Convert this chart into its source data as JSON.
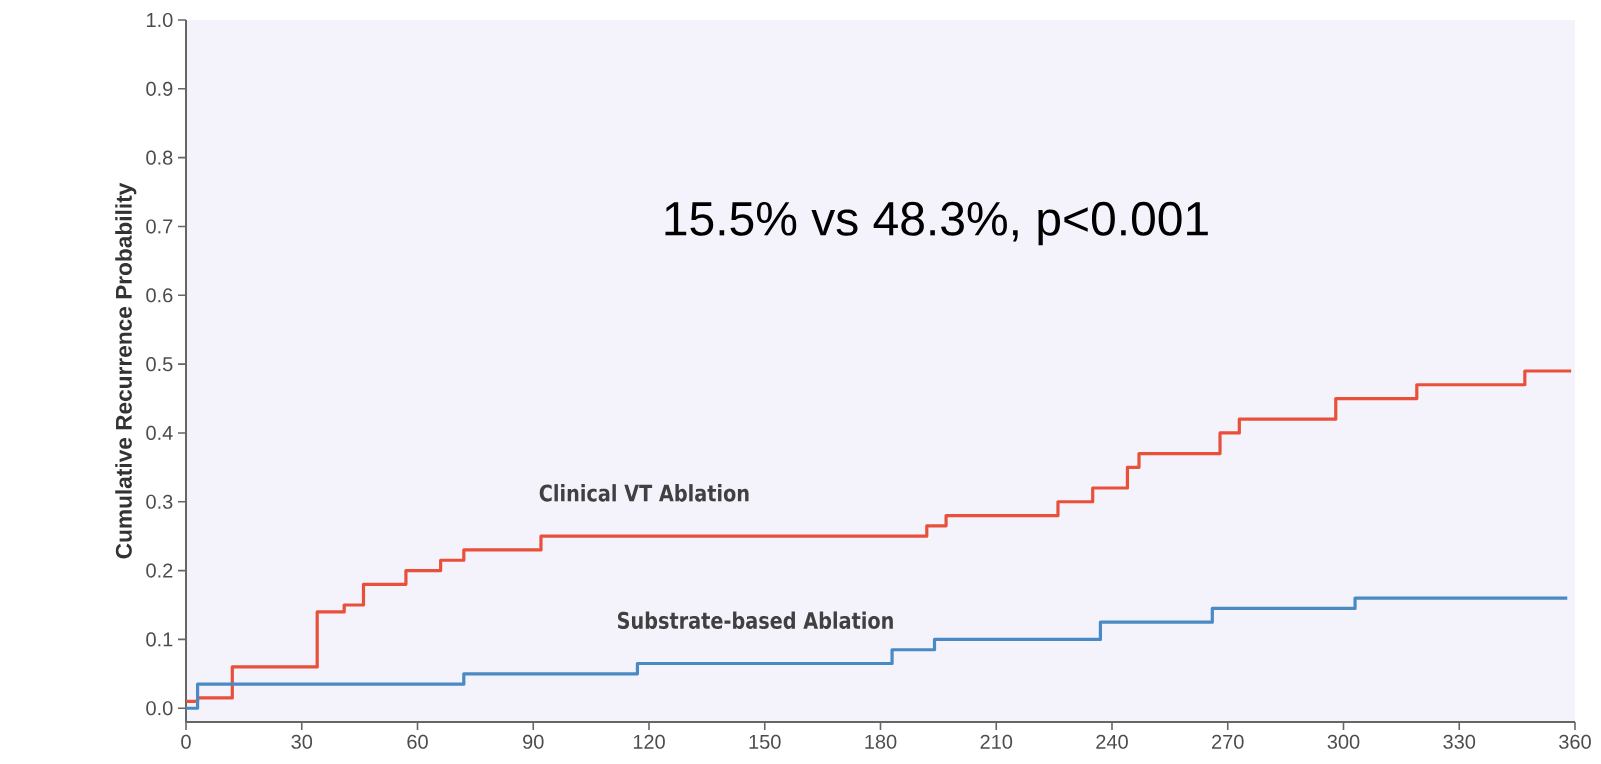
{
  "chart_data": {
    "type": "step",
    "ylabel": "Cumulative Recurrence Probability",
    "xlim": [
      0,
      360
    ],
    "ylim": [
      -0.02,
      1.0
    ],
    "xticks": [
      0,
      30,
      60,
      90,
      120,
      150,
      180,
      210,
      240,
      270,
      300,
      330,
      360
    ],
    "yticks": [
      {
        "value": 0,
        "label": "0.0"
      },
      {
        "value": 0.1,
        "label": "0.1"
      },
      {
        "value": 0.2,
        "label": "0.2"
      },
      {
        "value": 0.3,
        "label": "0.3"
      },
      {
        "value": 0.4,
        "label": "0.4"
      },
      {
        "value": 0.5,
        "label": "0.5"
      },
      {
        "value": 0.6,
        "label": "0.6"
      },
      {
        "value": 0.7,
        "label": "0.7"
      },
      {
        "value": 0.8,
        "label": "0.8"
      },
      {
        "value": 0.9,
        "label": "0.9"
      },
      {
        "value": 1.0,
        "label": "1.0"
      }
    ],
    "series": [
      {
        "name": "Clinical VT Ablation",
        "color": "#e8503a",
        "x": [
          0,
          3,
          12,
          34,
          41,
          46,
          57,
          66,
          72,
          92,
          192,
          197,
          226,
          235,
          244,
          247,
          268,
          273,
          298,
          319,
          347,
          359
        ],
        "values": [
          0.01,
          0.015,
          0.06,
          0.14,
          0.15,
          0.18,
          0.2,
          0.215,
          0.23,
          0.25,
          0.265,
          0.28,
          0.3,
          0.32,
          0.35,
          0.37,
          0.4,
          0.42,
          0.45,
          0.47,
          0.49,
          0.49
        ]
      },
      {
        "name": "Substrate-based Ablation",
        "color": "#4a8ac4",
        "x": [
          0,
          3,
          72,
          117,
          183,
          194,
          237,
          266,
          303,
          358
        ],
        "values": [
          0,
          0.035,
          0.05,
          0.065,
          0.085,
          0.1,
          0.125,
          0.145,
          0.16,
          0.16
        ]
      }
    ],
    "annotations": [
      "15.5% vs 48.3%, p<0.001"
    ]
  }
}
